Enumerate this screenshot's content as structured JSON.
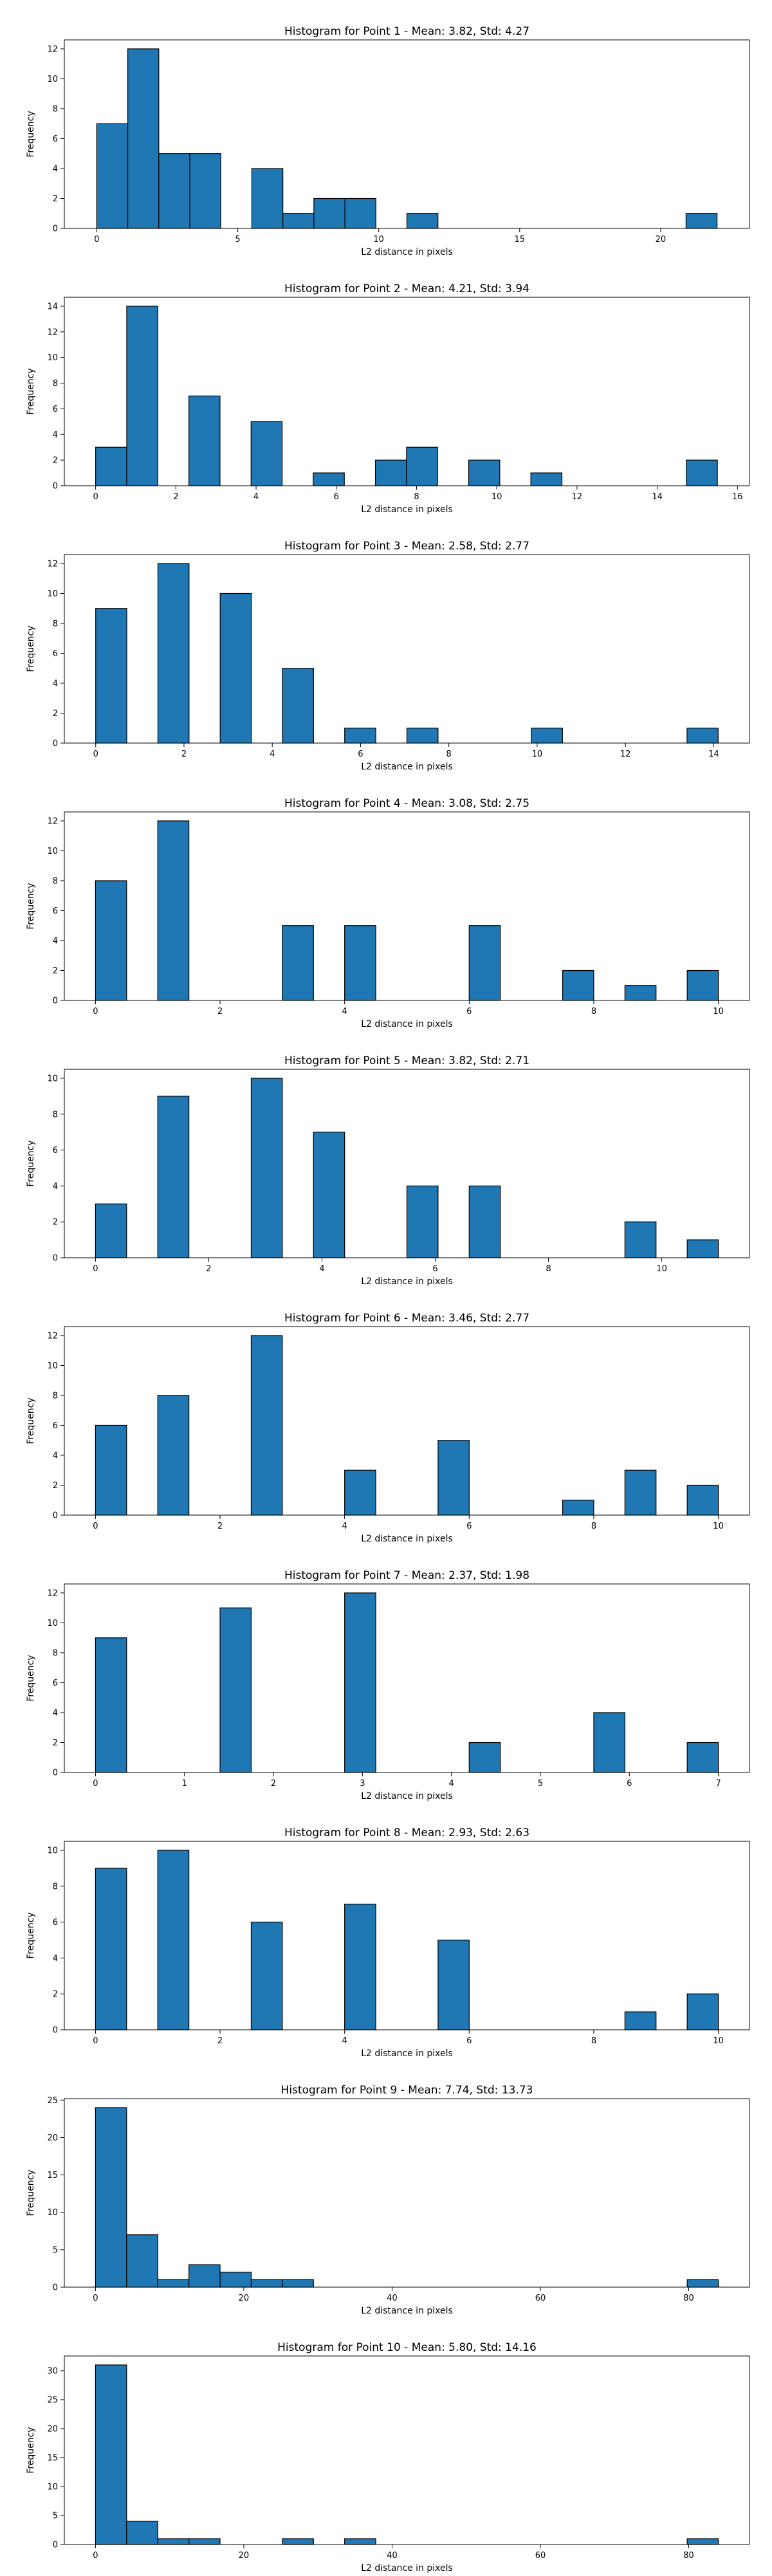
{
  "chart_data": [
    {
      "type": "bar",
      "title": "Histogram for Point 1 - Mean: 3.82, Std: 4.27",
      "xlabel": "L2 distance in pixels",
      "ylabel": "Frequency",
      "xlim": [
        -1.15,
        23.15
      ],
      "ylim": [
        0,
        12.6
      ],
      "xticks": [
        0,
        5,
        10,
        15,
        20
      ],
      "xtick_labels": [
        "0",
        "5",
        "10",
        "15",
        "20"
      ],
      "yticks": [
        0,
        2,
        4,
        6,
        8,
        10,
        12
      ],
      "ytick_labels": [
        "0",
        "2",
        "4",
        "6",
        "8",
        "10",
        "12"
      ],
      "bin_edges": [
        0,
        1.1,
        2.2,
        3.3,
        4.4,
        5.5,
        6.6,
        7.7,
        8.8,
        9.9,
        11.0,
        12.1,
        13.2,
        14.3,
        15.4,
        16.5,
        17.6,
        18.7,
        19.8,
        20.9,
        22.0
      ],
      "values": [
        7,
        12,
        5,
        5,
        0,
        4,
        1,
        2,
        2,
        0,
        1,
        0,
        0,
        0,
        0,
        0,
        0,
        0,
        0,
        1
      ]
    },
    {
      "type": "bar",
      "title": "Histogram for Point 2 - Mean: 4.21, Std: 3.94",
      "xlabel": "L2 distance in pixels",
      "ylabel": "Frequency",
      "xlim": [
        -0.78,
        16.3
      ],
      "ylim": [
        0,
        14.7
      ],
      "xticks": [
        0,
        2,
        4,
        6,
        8,
        10,
        12,
        14,
        16
      ],
      "xtick_labels": [
        "0",
        "2",
        "4",
        "6",
        "8",
        "10",
        "12",
        "14",
        "16"
      ],
      "yticks": [
        0,
        2,
        4,
        6,
        8,
        10,
        12,
        14
      ],
      "ytick_labels": [
        "0",
        "2",
        "4",
        "6",
        "8",
        "10",
        "12",
        "14"
      ],
      "bin_edges": [
        0,
        0.775,
        1.55,
        2.325,
        3.1,
        3.875,
        4.65,
        5.425,
        6.2,
        6.975,
        7.75,
        8.525,
        9.3,
        10.075,
        10.85,
        11.625,
        12.4,
        13.175,
        13.95,
        14.725,
        15.5
      ],
      "values": [
        3,
        14,
        0,
        7,
        0,
        5,
        0,
        1,
        0,
        2,
        3,
        0,
        2,
        0,
        1,
        0,
        0,
        0,
        0,
        2
      ]
    },
    {
      "type": "bar",
      "title": "Histogram for Point 3 - Mean: 2.58, Std: 2.77",
      "xlabel": "L2 distance in pixels",
      "ylabel": "Frequency",
      "xlim": [
        -0.71,
        14.81
      ],
      "ylim": [
        0,
        12.6
      ],
      "xticks": [
        0,
        2,
        4,
        6,
        8,
        10,
        12,
        14
      ],
      "xtick_labels": [
        "0",
        "2",
        "4",
        "6",
        "8",
        "10",
        "12",
        "14"
      ],
      "yticks": [
        0,
        2,
        4,
        6,
        8,
        10,
        12
      ],
      "ytick_labels": [
        "0",
        "2",
        "4",
        "6",
        "8",
        "10",
        "12"
      ],
      "bin_edges": [
        0,
        0.705,
        1.41,
        2.115,
        2.82,
        3.525,
        4.23,
        4.935,
        5.64,
        6.345,
        7.05,
        7.755,
        8.46,
        9.165,
        9.87,
        10.575,
        11.28,
        11.985,
        12.69,
        13.395,
        14.1
      ],
      "values": [
        9,
        0,
        12,
        0,
        10,
        0,
        5,
        0,
        1,
        0,
        1,
        0,
        0,
        0,
        1,
        0,
        0,
        0,
        0,
        1
      ]
    },
    {
      "type": "bar",
      "title": "Histogram for Point 4 - Mean: 3.08, Std: 2.75",
      "xlabel": "L2 distance in pixels",
      "ylabel": "Frequency",
      "xlim": [
        -0.5,
        10.5
      ],
      "ylim": [
        0,
        12.6
      ],
      "xticks": [
        0,
        2,
        4,
        6,
        8,
        10
      ],
      "xtick_labels": [
        "0",
        "2",
        "4",
        "6",
        "8",
        "10"
      ],
      "yticks": [
        0,
        2,
        4,
        6,
        8,
        10,
        12
      ],
      "ytick_labels": [
        "0",
        "2",
        "4",
        "6",
        "8",
        "10",
        "12"
      ],
      "bin_edges": [
        0,
        0.5,
        1.0,
        1.5,
        2.0,
        2.5,
        3.0,
        3.5,
        4.0,
        4.5,
        5.0,
        5.5,
        6.0,
        6.5,
        7.0,
        7.5,
        8.0,
        8.5,
        9.0,
        9.5,
        10.0
      ],
      "values": [
        8,
        0,
        12,
        0,
        0,
        0,
        5,
        0,
        5,
        0,
        0,
        0,
        5,
        0,
        0,
        2,
        0,
        1,
        0,
        2
      ]
    },
    {
      "type": "bar",
      "title": "Histogram for Point 5 - Mean: 3.82, Std: 2.71",
      "xlabel": "L2 distance in pixels",
      "ylabel": "Frequency",
      "xlim": [
        -0.55,
        11.55
      ],
      "ylim": [
        0,
        10.5
      ],
      "xticks": [
        0,
        2,
        4,
        6,
        8,
        10
      ],
      "xtick_labels": [
        "0",
        "2",
        "4",
        "6",
        "8",
        "10"
      ],
      "yticks": [
        0,
        2,
        4,
        6,
        8,
        10
      ],
      "ytick_labels": [
        "0",
        "2",
        "4",
        "6",
        "8",
        "10"
      ],
      "bin_edges": [
        0,
        0.55,
        1.1,
        1.65,
        2.2,
        2.75,
        3.3,
        3.85,
        4.4,
        4.95,
        5.5,
        6.05,
        6.6,
        7.15,
        7.7,
        8.25,
        8.8,
        9.35,
        9.9,
        10.45,
        11.0
      ],
      "values": [
        3,
        0,
        9,
        0,
        0,
        10,
        0,
        7,
        0,
        0,
        4,
        0,
        4,
        0,
        0,
        0,
        0,
        2,
        0,
        1
      ]
    },
    {
      "type": "bar",
      "title": "Histogram for Point 6 - Mean: 3.46, Std: 2.77",
      "xlabel": "L2 distance in pixels",
      "ylabel": "Frequency",
      "xlim": [
        -0.5,
        10.5
      ],
      "ylim": [
        0,
        12.6
      ],
      "xticks": [
        0,
        2,
        4,
        6,
        8,
        10
      ],
      "xtick_labels": [
        "0",
        "2",
        "4",
        "6",
        "8",
        "10"
      ],
      "yticks": [
        0,
        2,
        4,
        6,
        8,
        10,
        12
      ],
      "ytick_labels": [
        "0",
        "2",
        "4",
        "6",
        "8",
        "10",
        "12"
      ],
      "bin_edges": [
        0,
        0.5,
        1.0,
        1.5,
        2.0,
        2.5,
        3.0,
        3.5,
        4.0,
        4.5,
        5.0,
        5.5,
        6.0,
        6.5,
        7.0,
        7.5,
        8.0,
        8.5,
        9.0,
        9.5,
        10.0
      ],
      "values": [
        6,
        0,
        8,
        0,
        0,
        12,
        0,
        0,
        3,
        0,
        0,
        5,
        0,
        0,
        0,
        1,
        0,
        3,
        0,
        2
      ]
    },
    {
      "type": "bar",
      "title": "Histogram for Point 7 - Mean: 2.37, Std: 1.98",
      "xlabel": "L2 distance in pixels",
      "ylabel": "Frequency",
      "xlim": [
        -0.35,
        7.35
      ],
      "ylim": [
        0,
        12.6
      ],
      "xticks": [
        0,
        1,
        2,
        3,
        4,
        5,
        6,
        7
      ],
      "xtick_labels": [
        "0",
        "1",
        "2",
        "3",
        "4",
        "5",
        "6",
        "7"
      ],
      "yticks": [
        0,
        2,
        4,
        6,
        8,
        10,
        12
      ],
      "ytick_labels": [
        "0",
        "2",
        "4",
        "6",
        "8",
        "10",
        "12"
      ],
      "bin_edges": [
        0,
        0.35,
        0.7,
        1.05,
        1.4,
        1.75,
        2.1,
        2.45,
        2.8,
        3.15,
        3.5,
        3.85,
        4.2,
        4.55,
        4.9,
        5.25,
        5.6,
        5.95,
        6.3,
        6.65,
        7.0
      ],
      "values": [
        9,
        0,
        0,
        0,
        11,
        0,
        0,
        0,
        12,
        0,
        0,
        0,
        2,
        0,
        0,
        0,
        4,
        0,
        0,
        2
      ]
    },
    {
      "type": "bar",
      "title": "Histogram for Point 8 - Mean: 2.93, Std: 2.63",
      "xlabel": "L2 distance in pixels",
      "ylabel": "Frequency",
      "xlim": [
        -0.5,
        10.5
      ],
      "ylim": [
        0,
        10.5
      ],
      "xticks": [
        0,
        2,
        4,
        6,
        8,
        10
      ],
      "xtick_labels": [
        "0",
        "2",
        "4",
        "6",
        "8",
        "10"
      ],
      "yticks": [
        0,
        2,
        4,
        6,
        8,
        10
      ],
      "ytick_labels": [
        "0",
        "2",
        "4",
        "6",
        "8",
        "10"
      ],
      "bin_edges": [
        0,
        0.5,
        1.0,
        1.5,
        2.0,
        2.5,
        3.0,
        3.5,
        4.0,
        4.5,
        5.0,
        5.5,
        6.0,
        6.5,
        7.0,
        7.5,
        8.0,
        8.5,
        9.0,
        9.5,
        10.0
      ],
      "values": [
        9,
        0,
        10,
        0,
        0,
        6,
        0,
        0,
        7,
        0,
        0,
        5,
        0,
        0,
        0,
        0,
        0,
        1,
        0,
        2
      ]
    },
    {
      "type": "bar",
      "title": "Histogram for Point 9 - Mean: 7.74, Std: 13.73",
      "xlabel": "L2 distance in pixels",
      "ylabel": "Frequency",
      "xlim": [
        -4.2,
        88.2
      ],
      "ylim": [
        0,
        25.2
      ],
      "xticks": [
        0,
        20,
        40,
        60,
        80
      ],
      "xtick_labels": [
        "0",
        "20",
        "40",
        "60",
        "80"
      ],
      "yticks": [
        0,
        5,
        10,
        15,
        20,
        25
      ],
      "ytick_labels": [
        "0",
        "5",
        "10",
        "15",
        "20",
        "25"
      ],
      "bin_edges": [
        0,
        4.2,
        8.4,
        12.6,
        16.8,
        21.0,
        25.2,
        29.4,
        33.6,
        37.8,
        42.0,
        46.2,
        50.4,
        54.6,
        58.8,
        63.0,
        67.2,
        71.4,
        75.6,
        79.8,
        84.0
      ],
      "values": [
        24,
        7,
        1,
        3,
        2,
        1,
        1,
        0,
        0,
        0,
        0,
        0,
        0,
        0,
        0,
        0,
        0,
        0,
        0,
        1
      ]
    },
    {
      "type": "bar",
      "title": "Histogram for Point 10 - Mean: 5.80, Std: 14.16",
      "xlabel": "L2 distance in pixels",
      "ylabel": "Frequency",
      "xlim": [
        -4.2,
        88.2
      ],
      "ylim": [
        0,
        32.55
      ],
      "xticks": [
        0,
        20,
        40,
        60,
        80
      ],
      "xtick_labels": [
        "0",
        "20",
        "40",
        "60",
        "80"
      ],
      "yticks": [
        0,
        5,
        10,
        15,
        20,
        25,
        30
      ],
      "ytick_labels": [
        "0",
        "5",
        "10",
        "15",
        "20",
        "25",
        "30"
      ],
      "bin_edges": [
        0,
        4.2,
        8.4,
        12.6,
        16.8,
        21.0,
        25.2,
        29.4,
        33.6,
        37.8,
        42.0,
        46.2,
        50.4,
        54.6,
        58.8,
        63.0,
        67.2,
        71.4,
        75.6,
        79.8,
        84.0
      ],
      "values": [
        31,
        4,
        1,
        1,
        0,
        0,
        1,
        0,
        1,
        0,
        0,
        0,
        0,
        0,
        0,
        0,
        0,
        0,
        0,
        1
      ]
    }
  ],
  "colors": {
    "bar_fill": "#1f77b4",
    "bar_edge": "#000000",
    "axes": "#000000",
    "background": "#ffffff"
  }
}
